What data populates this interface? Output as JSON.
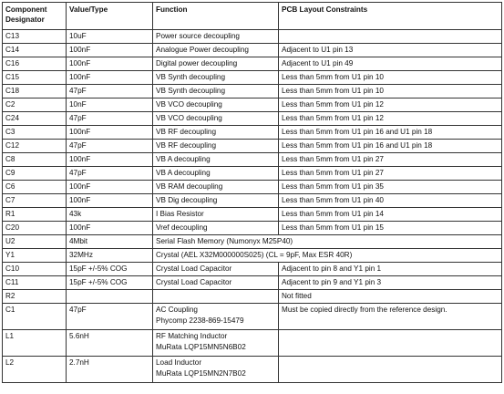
{
  "headers": [
    "Component Designator",
    "Value/Type",
    "Function",
    "PCB Layout Constraints"
  ],
  "rows": [
    {
      "designator": "C13",
      "value": "10uF",
      "function": "Power source decoupling",
      "constraint": ""
    },
    {
      "designator": "C14",
      "value": "100nF",
      "function": "Analogue Power decoupling",
      "constraint": "Adjacent to U1 pin 13"
    },
    {
      "designator": "C16",
      "value": "100nF",
      "function": "Digital power decoupling",
      "constraint": "Adjacent to U1 pin 49"
    },
    {
      "designator": "C15",
      "value": "100nF",
      "function": "VB Synth decoupling",
      "constraint": "Less than 5mm from  U1 pin 10"
    },
    {
      "designator": "C18",
      "value": "47pF",
      "function": "VB Synth decoupling",
      "constraint": "Less than 5mm from  U1 pin 10"
    },
    {
      "designator": "C2",
      "value": "10nF",
      "function": "VB VCO decoupling",
      "constraint": "Less than 5mm from  U1 pin 12"
    },
    {
      "designator": "C24",
      "value": "47pF",
      "function": "VB VCO decoupling",
      "constraint": "Less than 5mm from  U1 pin 12"
    },
    {
      "designator": "C3",
      "value": "100nF",
      "function": "VB RF decoupling",
      "constraint": "Less than 5mm from  U1 pin 16 and U1 pin 18"
    },
    {
      "designator": "C12",
      "value": "47pF",
      "function": "VB RF decoupling",
      "constraint": "Less than 5mm from  U1 pin 16 and U1 pin 18"
    },
    {
      "designator": "C8",
      "value": "100nF",
      "function": "VB A decoupling",
      "constraint": "Less than 5mm from  U1 pin 27"
    },
    {
      "designator": "C9",
      "value": "47pF",
      "function": "VB A decoupling",
      "constraint": "Less than 5mm from  U1 pin 27"
    },
    {
      "designator": "C6",
      "value": "100nF",
      "function": "VB RAM decoupling",
      "constraint": "Less than 5mm from  U1 pin 35"
    },
    {
      "designator": "C7",
      "value": "100nF",
      "function": "VB Dig decoupling",
      "constraint": "Less than 5mm from  U1 pin 40"
    },
    {
      "designator": "R1",
      "value": "43k",
      "function": "I Bias Resistor",
      "constraint": "Less than 5mm from  U1 pin 14"
    },
    {
      "designator": "C20",
      "value": "100nF",
      "function": "Vref decoupling",
      "constraint": "Less than 5mm from  U1 pin 15"
    }
  ],
  "span_rows": [
    {
      "designator": "U2",
      "value": "4Mbit",
      "function": "Serial Flash Memory (Numonyx M25P40)"
    },
    {
      "designator": "Y1",
      "value": "32MHz",
      "function": "Crystal (AEL X32M000000S025) (CL = 9pF, Max ESR 40R)"
    }
  ],
  "rows2": [
    {
      "designator": "C10",
      "value": "15pF +/-5% COG",
      "function": "Crystal Load Capacitor",
      "constraint": "Adjacent to pin 8 and Y1 pin 1"
    },
    {
      "designator": "C11",
      "value": "15pF +/-5% COG",
      "function": "Crystal Load Capacitor",
      "constraint": "Adjacent to pin 9 and Y1 pin 3"
    },
    {
      "designator": "R2",
      "value": "",
      "function": "",
      "constraint": "Not fitted"
    }
  ],
  "rows3": [
    {
      "designator": "C1",
      "value": "47pF",
      "function_line1": "AC Coupling",
      "function_line2": "Phycomp 2238-869-15479",
      "constraint": "Must be copied directly from the reference design."
    },
    {
      "designator": "L1",
      "value": "5.6nH",
      "function_line1": "RF Matching Inductor",
      "function_line2": "MuRata LQP15MN5N6B02",
      "constraint": ""
    },
    {
      "designator": "L2",
      "value": "2.7nH",
      "function_line1": "Load Inductor",
      "function_line2": "MuRata LQP15MN2N7B02",
      "constraint": ""
    }
  ]
}
